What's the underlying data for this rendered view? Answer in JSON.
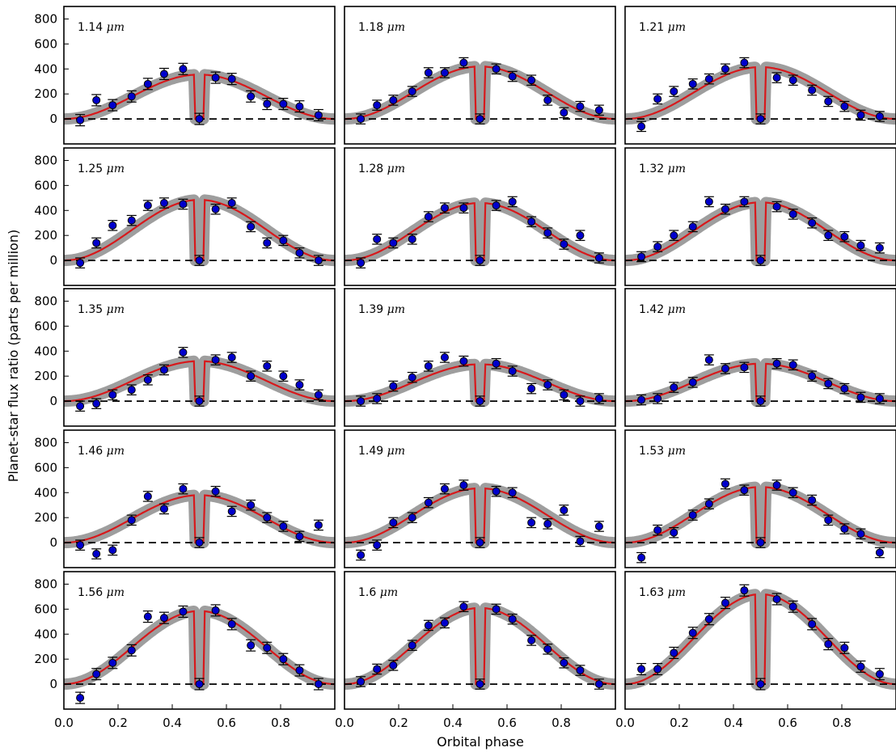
{
  "colors": {
    "model_line": "#d7191c",
    "model_band": "#9e9e9e",
    "data_marker": "#0000cc",
    "errorbar": "#000000",
    "zero_line": "#000000"
  },
  "chart_data": {
    "type": "scatter",
    "xlabel": "Orbital phase",
    "ylabel": "Planet-star flux ratio (parts per million)",
    "xlim": [
      0.0,
      1.0
    ],
    "ylim": [
      -200,
      900
    ],
    "x_ticks": [
      "0.0",
      "0.2",
      "0.4",
      "0.6",
      "0.8",
      "0.0",
      "0.2",
      "0.4",
      "0.6",
      "0.8",
      "0.0",
      "0.2",
      "0.4",
      "0.6",
      "0.8"
    ],
    "y_ticks": [
      "800",
      "600",
      "400",
      "200",
      "0"
    ],
    "unit": "μm",
    "grid": false,
    "x": [
      0.06,
      0.12,
      0.18,
      0.25,
      0.31,
      0.37,
      0.44,
      0.5,
      0.56,
      0.62,
      0.69,
      0.75,
      0.81,
      0.87,
      0.94
    ],
    "panels": [
      {
        "label": "1.14",
        "peak": 355,
        "values": [
          -10,
          150,
          110,
          180,
          280,
          360,
          400,
          0,
          330,
          320,
          180,
          120,
          120,
          100,
          30
        ],
        "error": 45
      },
      {
        "label": "1.18",
        "peak": 420,
        "values": [
          0,
          110,
          150,
          220,
          370,
          370,
          450,
          0,
          400,
          340,
          310,
          150,
          50,
          100,
          70
        ],
        "error": 40
      },
      {
        "label": "1.21",
        "peak": 415,
        "values": [
          -60,
          160,
          220,
          280,
          320,
          400,
          450,
          0,
          330,
          310,
          230,
          140,
          100,
          30,
          20
        ],
        "error": 40
      },
      {
        "label": "1.25",
        "peak": 485,
        "values": [
          -20,
          140,
          280,
          320,
          440,
          460,
          450,
          0,
          410,
          460,
          270,
          140,
          160,
          60,
          0
        ],
        "error": 40
      },
      {
        "label": "1.28",
        "peak": 460,
        "values": [
          -20,
          170,
          140,
          170,
          350,
          420,
          420,
          0,
          440,
          470,
          310,
          220,
          130,
          200,
          20
        ],
        "error": 40
      },
      {
        "label": "1.32",
        "peak": 465,
        "values": [
          30,
          110,
          200,
          270,
          470,
          410,
          470,
          0,
          430,
          370,
          300,
          200,
          190,
          120,
          100
        ],
        "error": 40
      },
      {
        "label": "1.35",
        "peak": 320,
        "values": [
          -40,
          -20,
          50,
          90,
          170,
          250,
          390,
          0,
          330,
          350,
          200,
          280,
          200,
          130,
          50
        ],
        "error": 40
      },
      {
        "label": "1.39",
        "peak": 295,
        "values": [
          0,
          20,
          120,
          190,
          280,
          350,
          320,
          0,
          300,
          240,
          100,
          130,
          50,
          0,
          20
        ],
        "error": 40
      },
      {
        "label": "1.42",
        "peak": 300,
        "values": [
          10,
          20,
          110,
          150,
          330,
          260,
          270,
          0,
          300,
          290,
          200,
          140,
          100,
          30,
          20
        ],
        "error": 40
      },
      {
        "label": "1.46",
        "peak": 380,
        "values": [
          -20,
          -90,
          -60,
          180,
          370,
          270,
          430,
          0,
          410,
          250,
          300,
          200,
          130,
          50,
          140
        ],
        "error": 40
      },
      {
        "label": "1.49",
        "peak": 435,
        "values": [
          -100,
          -20,
          160,
          200,
          320,
          430,
          460,
          0,
          410,
          400,
          160,
          150,
          260,
          10,
          130
        ],
        "error": 40
      },
      {
        "label": "1.53",
        "peak": 445,
        "values": [
          -120,
          100,
          80,
          220,
          310,
          470,
          420,
          0,
          460,
          400,
          340,
          180,
          110,
          70,
          -80
        ],
        "error": 40
      },
      {
        "label": "1.56",
        "peak": 585,
        "values": [
          -110,
          80,
          170,
          270,
          540,
          530,
          580,
          0,
          590,
          480,
          310,
          290,
          200,
          110,
          0
        ],
        "error": 45
      },
      {
        "label": "1.6",
        "peak": 610,
        "values": [
          20,
          120,
          150,
          310,
          470,
          490,
          620,
          0,
          600,
          520,
          350,
          280,
          170,
          110,
          0
        ],
        "error": 40
      },
      {
        "label": "1.63",
        "peak": 720,
        "values": [
          120,
          120,
          250,
          410,
          520,
          650,
          750,
          0,
          680,
          620,
          480,
          320,
          290,
          140,
          80
        ],
        "error": 45
      }
    ]
  }
}
